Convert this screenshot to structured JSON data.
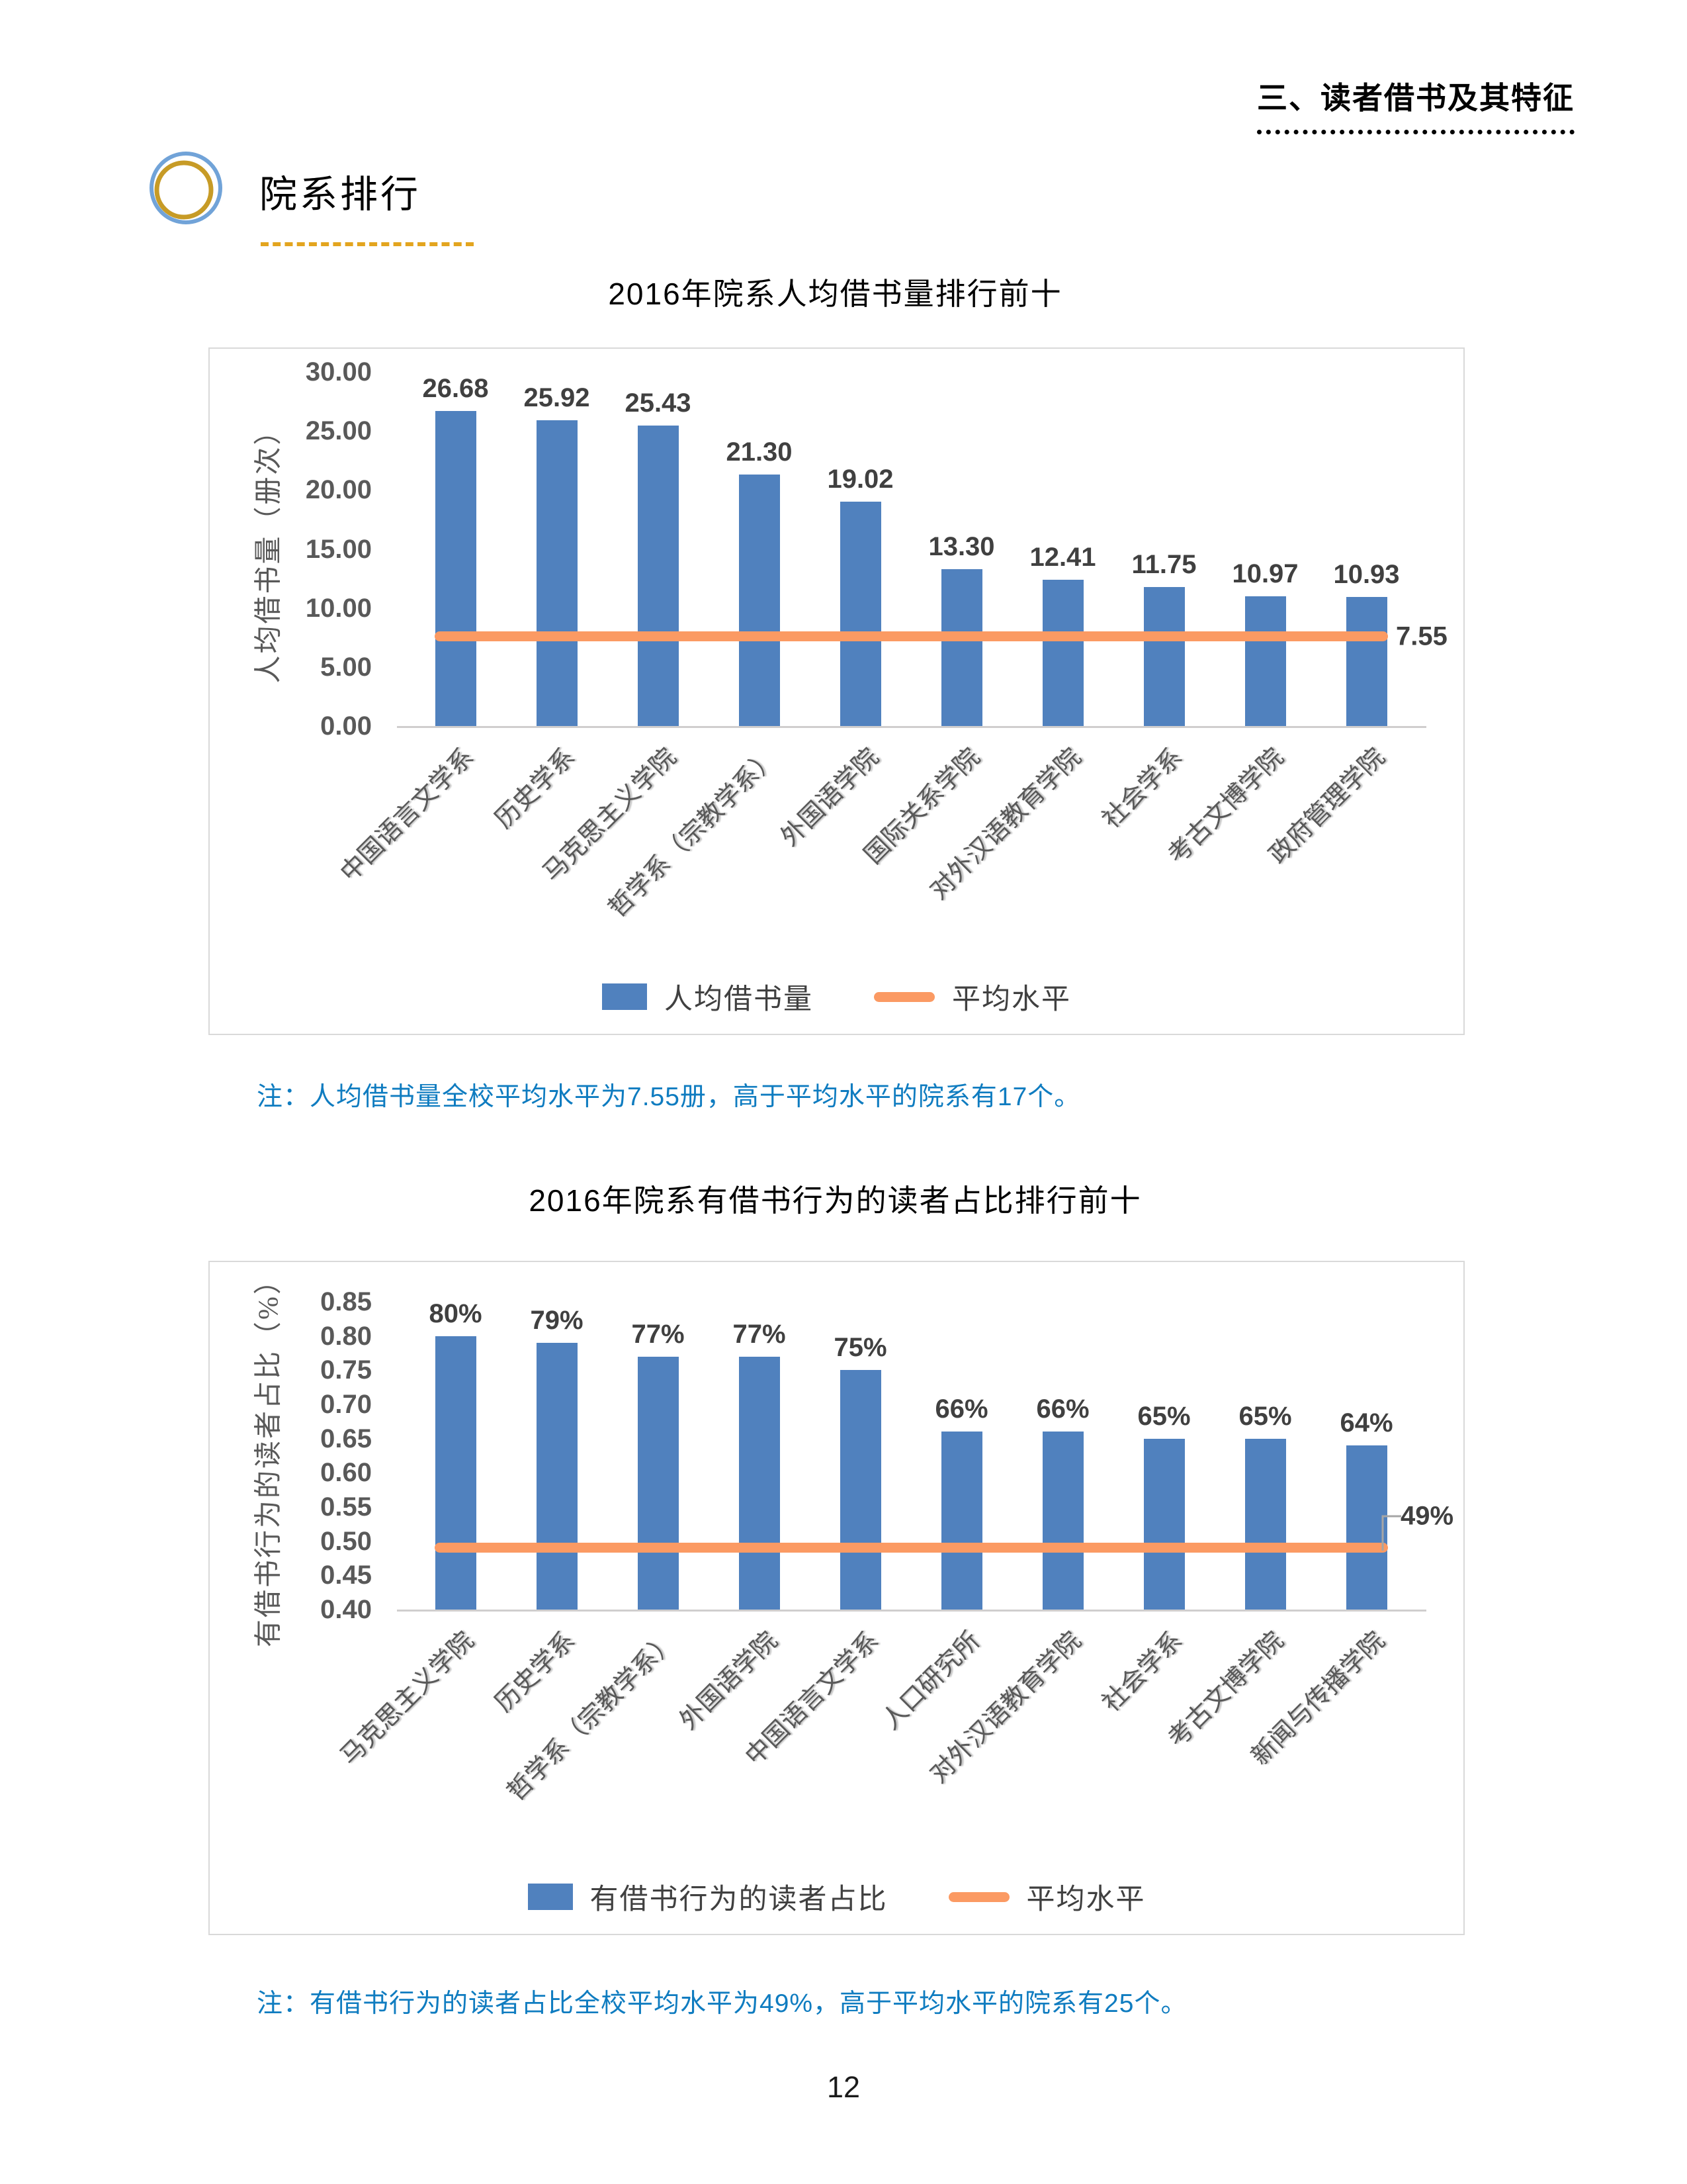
{
  "page": {
    "header": "三、读者借书及其特征",
    "section_title": "院系排行",
    "page_number": "12"
  },
  "colors": {
    "bar_blue": "#5081BE",
    "line_orange": "#FB9A63",
    "note_blue": "#0F7CC0",
    "tick_gray": "#595959",
    "data_label": "#404040",
    "axis_gray": "#D0CECE",
    "box_border": "#D9D9D9",
    "callout_gray": "#A6A6A6",
    "icon_ring_blue": "#71A3D8",
    "icon_ring_gold": "#C79B26",
    "section_dash_gold": "#E3A51F"
  },
  "chart_data": [
    {
      "type": "bar",
      "title": "2016年院系人均借书量排行前十",
      "categories": [
        "中国语言文学系",
        "历史学系",
        "马克思主义学院",
        "哲学系（宗教学系）",
        "外国语学院",
        "国际关系学院",
        "对外汉语教育学院",
        "社会学系",
        "考古文博学院",
        "政府管理学院"
      ],
      "series": [
        {
          "name": "人均借书量",
          "values": [
            26.68,
            25.92,
            25.43,
            21.3,
            19.02,
            13.3,
            12.41,
            11.75,
            10.97,
            10.93
          ]
        }
      ],
      "value_labels": [
        "26.68",
        "25.92",
        "25.43",
        "21.30",
        "19.02",
        "13.30",
        "12.41",
        "11.75",
        "10.97",
        "10.93"
      ],
      "average_line": {
        "name": "平均水平",
        "value": 7.55,
        "label": "7.55",
        "callout": false
      },
      "ylabel": "人均借书量（册次）",
      "yticks": [
        "30.00",
        "25.00",
        "20.00",
        "15.00",
        "10.00",
        "5.00",
        "0.00"
      ],
      "ylim": [
        0,
        30
      ],
      "grid": false,
      "legend_position": "bottom",
      "legend": [
        {
          "swatch": "rect",
          "label": "人均借书量"
        },
        {
          "swatch": "line",
          "label": "平均水平"
        }
      ],
      "note": "注：人均借书量全校平均水平为7.55册，高于平均水平的院系有17个。"
    },
    {
      "type": "bar",
      "title": "2016年院系有借书行为的读者占比排行前十",
      "categories": [
        "马克思主义学院",
        "历史学系",
        "哲学系（宗教学系）",
        "外国语学院",
        "中国语言文学系",
        "人口研究所",
        "对外汉语教育学院",
        "社会学系",
        "考古文博学院",
        "新闻与传播学院"
      ],
      "series": [
        {
          "name": "有借书行为的读者占比",
          "values": [
            0.8,
            0.79,
            0.77,
            0.77,
            0.75,
            0.66,
            0.66,
            0.65,
            0.65,
            0.64
          ]
        }
      ],
      "value_labels": [
        "80%",
        "79%",
        "77%",
        "77%",
        "75%",
        "66%",
        "66%",
        "65%",
        "65%",
        "64%"
      ],
      "average_line": {
        "name": "平均水平",
        "value": 0.49,
        "label": "49%",
        "callout": true
      },
      "ylabel": "有借书行为的读者占比（%）",
      "yticks": [
        "0.85",
        "0.80",
        "0.75",
        "0.70",
        "0.65",
        "0.60",
        "0.55",
        "0.50",
        "0.45",
        "0.40"
      ],
      "ylim": [
        0.4,
        0.85
      ],
      "grid": false,
      "legend_position": "bottom",
      "legend": [
        {
          "swatch": "rect",
          "label": "有借书行为的读者占比"
        },
        {
          "swatch": "line",
          "label": "平均水平"
        }
      ],
      "note": "注：有借书行为的读者占比全校平均水平为49%，高于平均水平的院系有25个。"
    }
  ]
}
